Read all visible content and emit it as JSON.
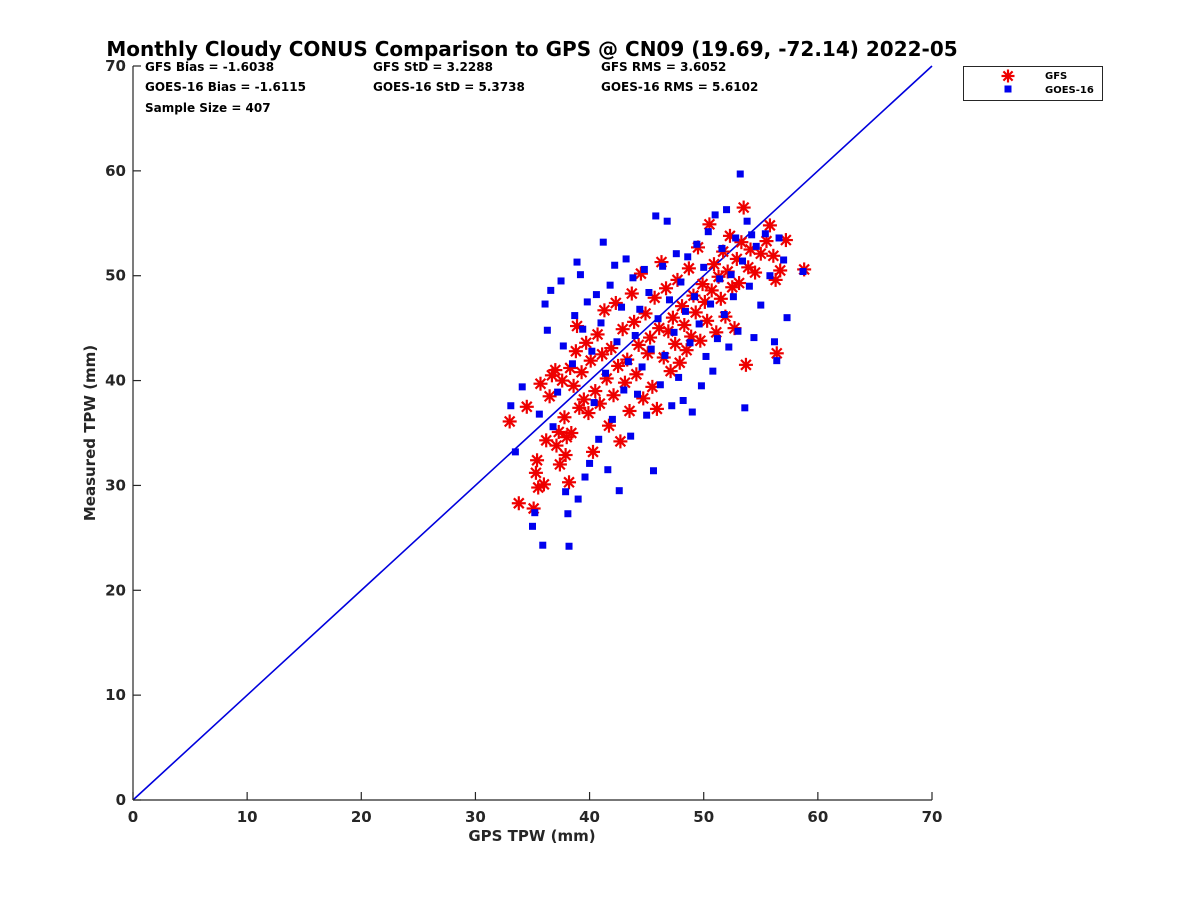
{
  "chart_data": {
    "type": "scatter",
    "title": "Monthly Cloudy CONUS Comparison to GPS @ CN09 (19.69, -72.14) 2022-05",
    "xlabel": "GPS TPW (mm)",
    "ylabel": "Measured TPW (mm)",
    "xlim": [
      0,
      70
    ],
    "ylim": [
      0,
      70
    ],
    "xticks": [
      "0",
      "10",
      "20",
      "30",
      "40",
      "50",
      "60",
      "70"
    ],
    "yticks": [
      "0",
      "10",
      "20",
      "30",
      "40",
      "50",
      "60",
      "70"
    ],
    "grid": false,
    "legend_position": "top-right, outside axes",
    "reference_line": {
      "x": [
        0,
        70
      ],
      "y": [
        0,
        70
      ],
      "color": "#0000dd"
    },
    "stats": [
      [
        "GFS Bias = -1.6038",
        "GFS StD = 3.2288",
        "GFS RMS = 3.6052"
      ],
      [
        "GOES-16 Bias = -1.6115",
        "GOES-16 StD = 5.3738",
        "GOES-16 RMS = 5.6102"
      ],
      [
        "Sample Size = 407"
      ]
    ],
    "series": [
      {
        "name": "GFS",
        "marker": "asterisk",
        "color": "#ee0000",
        "points": [
          [
            33.0,
            36.1
          ],
          [
            33.8,
            28.3
          ],
          [
            34.5,
            37.5
          ],
          [
            35.1,
            27.8
          ],
          [
            35.3,
            31.2
          ],
          [
            35.4,
            32.4
          ],
          [
            35.5,
            29.8
          ],
          [
            35.7,
            39.7
          ],
          [
            36.0,
            30.1
          ],
          [
            36.2,
            34.3
          ],
          [
            36.5,
            38.5
          ],
          [
            36.7,
            40.5
          ],
          [
            37.0,
            41.0
          ],
          [
            37.1,
            33.8
          ],
          [
            37.3,
            35.1
          ],
          [
            37.4,
            32.0
          ],
          [
            37.6,
            40.0
          ],
          [
            37.8,
            36.5
          ],
          [
            37.9,
            32.9
          ],
          [
            38.0,
            34.6
          ],
          [
            38.2,
            30.3
          ],
          [
            38.3,
            41.2
          ],
          [
            38.4,
            35.0
          ],
          [
            38.6,
            39.5
          ],
          [
            38.8,
            42.8
          ],
          [
            38.9,
            45.2
          ],
          [
            39.1,
            37.4
          ],
          [
            39.3,
            40.8
          ],
          [
            39.5,
            38.2
          ],
          [
            39.7,
            43.6
          ],
          [
            39.9,
            36.9
          ],
          [
            40.1,
            41.9
          ],
          [
            40.3,
            33.2
          ],
          [
            40.5,
            39.0
          ],
          [
            40.7,
            44.4
          ],
          [
            40.9,
            37.8
          ],
          [
            41.1,
            42.5
          ],
          [
            41.3,
            46.7
          ],
          [
            41.5,
            40.2
          ],
          [
            41.7,
            35.7
          ],
          [
            41.9,
            43.1
          ],
          [
            42.1,
            38.6
          ],
          [
            42.3,
            47.4
          ],
          [
            42.5,
            41.4
          ],
          [
            42.7,
            34.2
          ],
          [
            42.9,
            44.9
          ],
          [
            43.1,
            39.8
          ],
          [
            43.3,
            42.0
          ],
          [
            43.5,
            37.1
          ],
          [
            43.7,
            48.3
          ],
          [
            43.9,
            45.6
          ],
          [
            44.1,
            40.6
          ],
          [
            44.3,
            43.4
          ],
          [
            44.5,
            50.2
          ],
          [
            44.7,
            38.3
          ],
          [
            44.9,
            46.4
          ],
          [
            45.1,
            42.6
          ],
          [
            45.3,
            44.1
          ],
          [
            45.5,
            39.4
          ],
          [
            45.7,
            47.9
          ],
          [
            45.9,
            37.3
          ],
          [
            46.1,
            45.0
          ],
          [
            46.3,
            51.3
          ],
          [
            46.5,
            42.2
          ],
          [
            46.7,
            48.8
          ],
          [
            46.9,
            44.7
          ],
          [
            47.1,
            40.9
          ],
          [
            47.3,
            46.0
          ],
          [
            47.5,
            43.5
          ],
          [
            47.7,
            49.6
          ],
          [
            47.9,
            41.7
          ],
          [
            48.1,
            47.1
          ],
          [
            48.3,
            45.3
          ],
          [
            48.5,
            42.9
          ],
          [
            48.7,
            50.7
          ],
          [
            48.9,
            44.2
          ],
          [
            49.1,
            48.1
          ],
          [
            49.3,
            46.5
          ],
          [
            49.5,
            52.7
          ],
          [
            49.7,
            43.8
          ],
          [
            49.9,
            49.2
          ],
          [
            50.1,
            47.5
          ],
          [
            50.3,
            45.7
          ],
          [
            50.5,
            54.9
          ],
          [
            50.7,
            48.6
          ],
          [
            50.9,
            51.1
          ],
          [
            51.1,
            44.6
          ],
          [
            51.3,
            49.9
          ],
          [
            51.5,
            47.8
          ],
          [
            51.7,
            52.3
          ],
          [
            51.9,
            46.1
          ],
          [
            52.1,
            50.4
          ],
          [
            52.3,
            53.8
          ],
          [
            52.5,
            48.9
          ],
          [
            52.7,
            45.0
          ],
          [
            52.9,
            51.6
          ],
          [
            53.1,
            49.3
          ],
          [
            53.3,
            53.2
          ],
          [
            53.5,
            56.5
          ],
          [
            53.7,
            41.5
          ],
          [
            53.9,
            50.8
          ],
          [
            54.1,
            52.5
          ],
          [
            54.5,
            50.3
          ],
          [
            55.0,
            52.1
          ],
          [
            55.5,
            53.3
          ],
          [
            55.8,
            54.8
          ],
          [
            56.1,
            51.9
          ],
          [
            56.3,
            49.6
          ],
          [
            56.4,
            42.6
          ],
          [
            56.7,
            50.5
          ],
          [
            57.2,
            53.4
          ],
          [
            58.8,
            50.6
          ]
        ]
      },
      {
        "name": "GOES-16",
        "marker": "square",
        "color": "#0000ee",
        "points": [
          [
            33.1,
            37.6
          ],
          [
            33.5,
            33.2
          ],
          [
            34.1,
            39.4
          ],
          [
            35.0,
            26.1
          ],
          [
            35.2,
            27.4
          ],
          [
            35.6,
            36.8
          ],
          [
            35.9,
            24.3
          ],
          [
            36.1,
            47.3
          ],
          [
            36.3,
            44.8
          ],
          [
            36.6,
            48.6
          ],
          [
            36.8,
            35.6
          ],
          [
            37.2,
            38.9
          ],
          [
            37.5,
            49.5
          ],
          [
            37.7,
            43.3
          ],
          [
            37.9,
            29.4
          ],
          [
            38.1,
            27.3
          ],
          [
            38.2,
            24.2
          ],
          [
            38.5,
            41.6
          ],
          [
            38.7,
            46.2
          ],
          [
            38.9,
            51.3
          ],
          [
            39.0,
            28.7
          ],
          [
            39.2,
            50.1
          ],
          [
            39.4,
            44.9
          ],
          [
            39.6,
            30.8
          ],
          [
            39.8,
            47.5
          ],
          [
            40.0,
            32.1
          ],
          [
            40.2,
            42.8
          ],
          [
            40.4,
            37.9
          ],
          [
            40.6,
            48.2
          ],
          [
            40.8,
            34.4
          ],
          [
            41.0,
            45.5
          ],
          [
            41.2,
            53.2
          ],
          [
            41.4,
            40.7
          ],
          [
            41.6,
            31.5
          ],
          [
            41.8,
            49.1
          ],
          [
            42.0,
            36.3
          ],
          [
            42.2,
            51.0
          ],
          [
            42.4,
            43.7
          ],
          [
            42.6,
            29.5
          ],
          [
            42.8,
            47.0
          ],
          [
            43.0,
            39.1
          ],
          [
            43.2,
            51.6
          ],
          [
            43.4,
            41.8
          ],
          [
            43.6,
            34.7
          ],
          [
            43.8,
            49.8
          ],
          [
            44.0,
            44.3
          ],
          [
            44.2,
            38.7
          ],
          [
            44.4,
            46.8
          ],
          [
            44.6,
            41.3
          ],
          [
            44.8,
            50.6
          ],
          [
            45.0,
            36.7
          ],
          [
            45.2,
            48.4
          ],
          [
            45.4,
            43.0
          ],
          [
            45.6,
            31.4
          ],
          [
            45.8,
            55.7
          ],
          [
            46.0,
            45.9
          ],
          [
            46.2,
            39.6
          ],
          [
            46.4,
            50.9
          ],
          [
            46.6,
            42.4
          ],
          [
            46.8,
            55.2
          ],
          [
            47.0,
            47.7
          ],
          [
            47.2,
            37.6
          ],
          [
            47.4,
            44.6
          ],
          [
            47.6,
            52.1
          ],
          [
            47.8,
            40.3
          ],
          [
            48.0,
            49.4
          ],
          [
            48.2,
            38.1
          ],
          [
            48.4,
            46.6
          ],
          [
            48.6,
            51.8
          ],
          [
            48.8,
            43.6
          ],
          [
            49.0,
            37.0
          ],
          [
            49.2,
            48.0
          ],
          [
            49.4,
            53.0
          ],
          [
            49.6,
            45.4
          ],
          [
            49.8,
            39.5
          ],
          [
            50.0,
            50.8
          ],
          [
            50.2,
            42.3
          ],
          [
            50.4,
            54.2
          ],
          [
            50.6,
            47.3
          ],
          [
            50.8,
            40.9
          ],
          [
            51.0,
            55.8
          ],
          [
            51.2,
            44.0
          ],
          [
            51.4,
            49.7
          ],
          [
            51.6,
            52.6
          ],
          [
            51.8,
            46.3
          ],
          [
            52.0,
            56.3
          ],
          [
            52.2,
            43.2
          ],
          [
            52.4,
            50.1
          ],
          [
            52.6,
            48.0
          ],
          [
            52.8,
            53.6
          ],
          [
            53.0,
            44.7
          ],
          [
            53.2,
            59.7
          ],
          [
            53.4,
            51.4
          ],
          [
            53.6,
            37.4
          ],
          [
            53.8,
            55.2
          ],
          [
            54.0,
            49.0
          ],
          [
            54.2,
            53.9
          ],
          [
            54.4,
            44.1
          ],
          [
            54.6,
            52.8
          ],
          [
            55.0,
            47.2
          ],
          [
            55.4,
            54.0
          ],
          [
            55.8,
            50.0
          ],
          [
            56.2,
            43.7
          ],
          [
            56.4,
            41.9
          ],
          [
            56.6,
            53.6
          ],
          [
            57.0,
            51.5
          ],
          [
            57.3,
            46.0
          ],
          [
            58.7,
            50.4
          ]
        ]
      }
    ]
  }
}
